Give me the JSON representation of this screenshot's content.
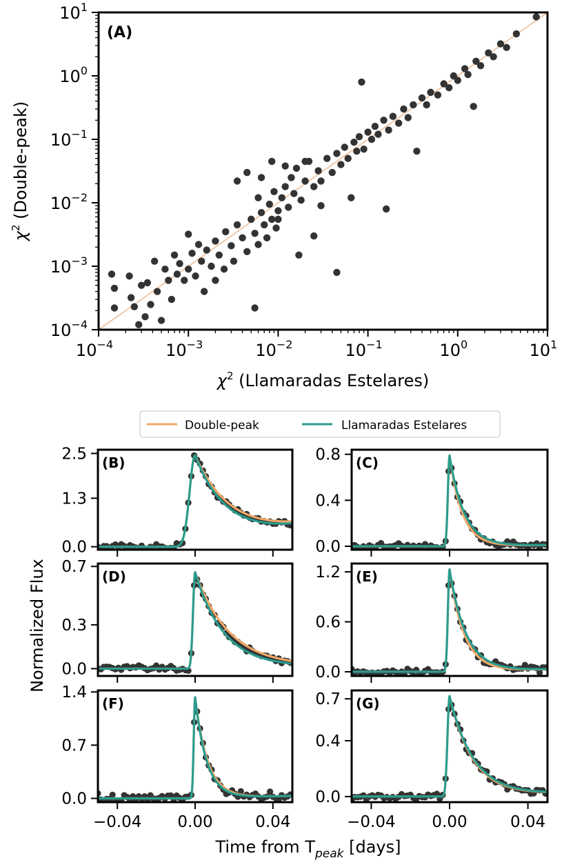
{
  "colors": {
    "scatter": "#333333",
    "identity_line": "#f2c9a8",
    "double_peak": "#f0a868",
    "llamaradas": "#2a9d8f"
  },
  "legend": {
    "items": [
      {
        "label": "Double-peak",
        "color": "#f0a868"
      },
      {
        "label": "Llamaradas Estelares",
        "color": "#2a9d8f"
      }
    ]
  },
  "shared": {
    "ylabel": "Normalized Flux",
    "xlabel_main": "Time from T",
    "xlabel_sub": "peak",
    "xlabel_unit": " [days]"
  },
  "chart_data": [
    {
      "type": "scatter",
      "panel": "(A)",
      "xlabel_main": "χ",
      "xlabel_sup": "2",
      "xlabel_rest": " (Llamaradas Estelares)",
      "ylabel_main": "χ",
      "ylabel_sup": "2",
      "ylabel_rest": " (Double-peak)",
      "xscale": "log",
      "yscale": "log",
      "xlim": [
        0.0001,
        10
      ],
      "ylim": [
        0.0001,
        10
      ],
      "xticks": [
        {
          "base": "10",
          "exp": "−4"
        },
        {
          "base": "10",
          "exp": "−3"
        },
        {
          "base": "10",
          "exp": "−2"
        },
        {
          "base": "10",
          "exp": "−1"
        },
        {
          "base": "10",
          "exp": "0"
        },
        {
          "base": "10",
          "exp": "1"
        }
      ],
      "yticks": [
        {
          "base": "10",
          "exp": "−4"
        },
        {
          "base": "10",
          "exp": "−3"
        },
        {
          "base": "10",
          "exp": "−2"
        },
        {
          "base": "10",
          "exp": "−1"
        },
        {
          "base": "10",
          "exp": "0"
        },
        {
          "base": "10",
          "exp": "1"
        }
      ],
      "identity_line": true,
      "points": [
        [
          0.00014,
          0.00075
        ],
        [
          0.00015,
          0.00045
        ],
        [
          0.00015,
          0.00022
        ],
        [
          0.00022,
          0.0007
        ],
        [
          0.00023,
          0.00032
        ],
        [
          0.00025,
          0.00023
        ],
        [
          0.00028,
          0.00012
        ],
        [
          0.0003,
          0.0005
        ],
        [
          0.00033,
          0.00016
        ],
        [
          0.00035,
          0.00055
        ],
        [
          0.00038,
          0.00025
        ],
        [
          0.00042,
          0.0012
        ],
        [
          0.00045,
          0.0004
        ],
        [
          0.0005,
          0.00014
        ],
        [
          0.00055,
          0.0009
        ],
        [
          0.0006,
          0.0006
        ],
        [
          0.00065,
          0.0003
        ],
        [
          0.0007,
          0.0015
        ],
        [
          0.00075,
          0.00075
        ],
        [
          0.0008,
          0.0011
        ],
        [
          0.0009,
          0.0006
        ],
        [
          0.001,
          0.0032
        ],
        [
          0.001,
          0.0009
        ],
        [
          0.0011,
          0.0016
        ],
        [
          0.0012,
          0.0007
        ],
        [
          0.0013,
          0.0022
        ],
        [
          0.0014,
          0.0012
        ],
        [
          0.0015,
          0.0004
        ],
        [
          0.0016,
          0.0018
        ],
        [
          0.0018,
          0.001
        ],
        [
          0.002,
          0.0025
        ],
        [
          0.002,
          0.0006
        ],
        [
          0.0022,
          0.0015
        ],
        [
          0.0025,
          0.0009
        ],
        [
          0.0026,
          0.0035
        ],
        [
          0.003,
          0.0021
        ],
        [
          0.0032,
          0.0012
        ],
        [
          0.0035,
          0.0045
        ],
        [
          0.004,
          0.0028
        ],
        [
          0.0045,
          0.0017
        ],
        [
          0.005,
          0.0055
        ],
        [
          0.0055,
          0.0033
        ],
        [
          0.006,
          0.0022
        ],
        [
          0.0065,
          0.007
        ],
        [
          0.007,
          0.0045
        ],
        [
          0.0075,
          0.0028
        ],
        [
          0.008,
          0.0095
        ],
        [
          0.0085,
          0.0055
        ],
        [
          0.009,
          0.015
        ],
        [
          0.0095,
          0.004
        ],
        [
          0.0035,
          0.022
        ],
        [
          0.0045,
          0.03
        ],
        [
          0.006,
          0.012
        ],
        [
          0.0065,
          0.025
        ],
        [
          0.0085,
          0.045
        ],
        [
          0.01,
          0.0075
        ],
        [
          0.011,
          0.012
        ],
        [
          0.012,
          0.018
        ],
        [
          0.013,
          0.0085
        ],
        [
          0.014,
          0.025
        ],
        [
          0.015,
          0.014
        ],
        [
          0.016,
          0.035
        ],
        [
          0.018,
          0.011
        ],
        [
          0.02,
          0.022
        ],
        [
          0.022,
          0.045
        ],
        [
          0.025,
          0.018
        ],
        [
          0.028,
          0.032
        ],
        [
          0.03,
          0.022
        ],
        [
          0.035,
          0.05
        ],
        [
          0.04,
          0.03
        ],
        [
          0.045,
          0.06
        ],
        [
          0.05,
          0.04
        ],
        [
          0.055,
          0.075
        ],
        [
          0.06,
          0.05
        ],
        [
          0.065,
          0.012
        ],
        [
          0.07,
          0.09
        ],
        [
          0.075,
          0.065
        ],
        [
          0.08,
          0.11
        ],
        [
          0.09,
          0.07
        ],
        [
          0.1,
          0.13
        ],
        [
          0.11,
          0.1
        ],
        [
          0.12,
          0.16
        ],
        [
          0.13,
          0.12
        ],
        [
          0.15,
          0.2
        ],
        [
          0.17,
          0.14
        ],
        [
          0.19,
          0.23
        ],
        [
          0.22,
          0.18
        ],
        [
          0.25,
          0.3
        ],
        [
          0.28,
          0.22
        ],
        [
          0.32,
          0.35
        ],
        [
          0.35,
          0.065
        ],
        [
          0.4,
          0.45
        ],
        [
          0.45,
          0.35
        ],
        [
          0.5,
          0.55
        ],
        [
          0.6,
          0.5
        ],
        [
          0.7,
          0.75
        ],
        [
          0.8,
          0.65
        ],
        [
          0.9,
          1.0
        ],
        [
          1.0,
          0.85
        ],
        [
          1.2,
          1.3
        ],
        [
          1.3,
          1.05
        ],
        [
          1.5,
          0.33
        ],
        [
          1.6,
          1.7
        ],
        [
          1.8,
          1.45
        ],
        [
          2.2,
          2.3
        ],
        [
          2.5,
          2.0
        ],
        [
          3.0,
          3.2
        ],
        [
          3.5,
          2.8
        ],
        [
          4.5,
          4.6
        ],
        [
          7.5,
          8.5
        ],
        [
          0.085,
          0.8
        ],
        [
          0.16,
          0.008
        ],
        [
          0.017,
          0.0015
        ],
        [
          0.025,
          0.003
        ],
        [
          0.045,
          0.0008
        ],
        [
          0.02,
          0.045
        ],
        [
          0.03,
          0.009
        ],
        [
          0.0055,
          0.00022
        ],
        [
          0.01,
          0.0055
        ],
        [
          0.012,
          0.038
        ]
      ]
    },
    {
      "type": "line",
      "panel": "(B)",
      "xlim": [
        -0.05,
        0.05
      ],
      "ylim": [
        -0.08,
        2.6
      ],
      "xticks": [
        -0.04,
        0.0,
        0.04
      ],
      "xticklabels": [],
      "yticks": [
        0.0,
        1.3,
        2.5
      ],
      "yticklabels": [
        "0.0",
        "1.3",
        "2.5"
      ],
      "peak": 2.45,
      "t_rise": 0.004,
      "tau_double": 0.022,
      "tau_llamaradas": 0.019,
      "baseline_end": 0.35,
      "series": [
        {
          "name": "Double-peak",
          "color": "#f0a868"
        },
        {
          "name": "Llamaradas Estelares",
          "color": "#2a9d8f"
        }
      ]
    },
    {
      "type": "line",
      "panel": "(C)",
      "xlim": [
        -0.05,
        0.05
      ],
      "ylim": [
        -0.03,
        0.84
      ],
      "xticks": [
        -0.04,
        0.0,
        0.04
      ],
      "xticklabels": [],
      "yticks": [
        0.0,
        0.4,
        0.8
      ],
      "yticklabels": [
        "0.0",
        "0.4",
        "0.8"
      ],
      "peak": 0.79,
      "t_rise": 0.0012,
      "tau_double": 0.0065,
      "tau_llamaradas": 0.0075,
      "baseline_end": 0.02,
      "series": [
        {
          "name": "Double-peak",
          "color": "#f0a868"
        },
        {
          "name": "Llamaradas Estelares",
          "color": "#2a9d8f"
        }
      ]
    },
    {
      "type": "line",
      "panel": "(D)",
      "xlim": [
        -0.05,
        0.05
      ],
      "ylim": [
        -0.05,
        0.72
      ],
      "xticks": [
        -0.04,
        0.0,
        0.04
      ],
      "xticklabels": [],
      "yticks": [
        0.0,
        0.3,
        0.7
      ],
      "yticklabels": [
        "0.0",
        "0.3",
        "0.7"
      ],
      "peak": 0.66,
      "t_rise": 0.0015,
      "tau_double": 0.018,
      "tau_llamaradas": 0.015,
      "baseline_end": 0.03,
      "series": [
        {
          "name": "Double-peak",
          "color": "#f0a868"
        },
        {
          "name": "Llamaradas Estelares",
          "color": "#2a9d8f"
        }
      ]
    },
    {
      "type": "line",
      "panel": "(E)",
      "xlim": [
        -0.05,
        0.05
      ],
      "ylim": [
        -0.05,
        1.3
      ],
      "xticks": [
        -0.04,
        0.0,
        0.04
      ],
      "xticklabels": [],
      "yticks": [
        0.0,
        0.6,
        1.2
      ],
      "yticklabels": [
        "0.0",
        "0.6",
        "1.2"
      ],
      "peak": 1.23,
      "t_rise": 0.0012,
      "tau_double": 0.0075,
      "tau_llamaradas": 0.0085,
      "baseline_end": 0.04,
      "series": [
        {
          "name": "Double-peak",
          "color": "#f0a868"
        },
        {
          "name": "Llamaradas Estelares",
          "color": "#2a9d8f"
        }
      ]
    },
    {
      "type": "line",
      "panel": "(F)",
      "xlim": [
        -0.05,
        0.05
      ],
      "ylim": [
        -0.05,
        1.42
      ],
      "xticks": [
        -0.04,
        0.0,
        0.04
      ],
      "xticklabels": [
        "−0.04",
        "0.00",
        "0.04"
      ],
      "yticks": [
        0.0,
        0.7,
        1.4
      ],
      "yticklabels": [
        "0.0",
        "0.7",
        "1.4"
      ],
      "peak": 1.33,
      "t_rise": 0.001,
      "tau_double": 0.0065,
      "tau_llamaradas": 0.006,
      "baseline_end": 0.04,
      "series": [
        {
          "name": "Double-peak",
          "color": "#f0a868"
        },
        {
          "name": "Llamaradas Estelares",
          "color": "#2a9d8f"
        }
      ]
    },
    {
      "type": "line",
      "panel": "(G)",
      "xlim": [
        -0.05,
        0.05
      ],
      "ylim": [
        -0.04,
        0.76
      ],
      "xticks": [
        -0.04,
        0.0,
        0.04
      ],
      "xticklabels": [
        "−0.04",
        "0.00",
        "0.04"
      ],
      "yticks": [
        0.0,
        0.4,
        0.7
      ],
      "yticklabels": [
        "0.0",
        "0.4",
        "0.7"
      ],
      "peak": 0.72,
      "t_rise": 0.0015,
      "tau_double": 0.012,
      "tau_llamaradas": 0.0125,
      "baseline_end": 0.05,
      "series": [
        {
          "name": "Double-peak",
          "color": "#f0a868"
        },
        {
          "name": "Llamaradas Estelares",
          "color": "#2a9d8f"
        }
      ]
    }
  ]
}
